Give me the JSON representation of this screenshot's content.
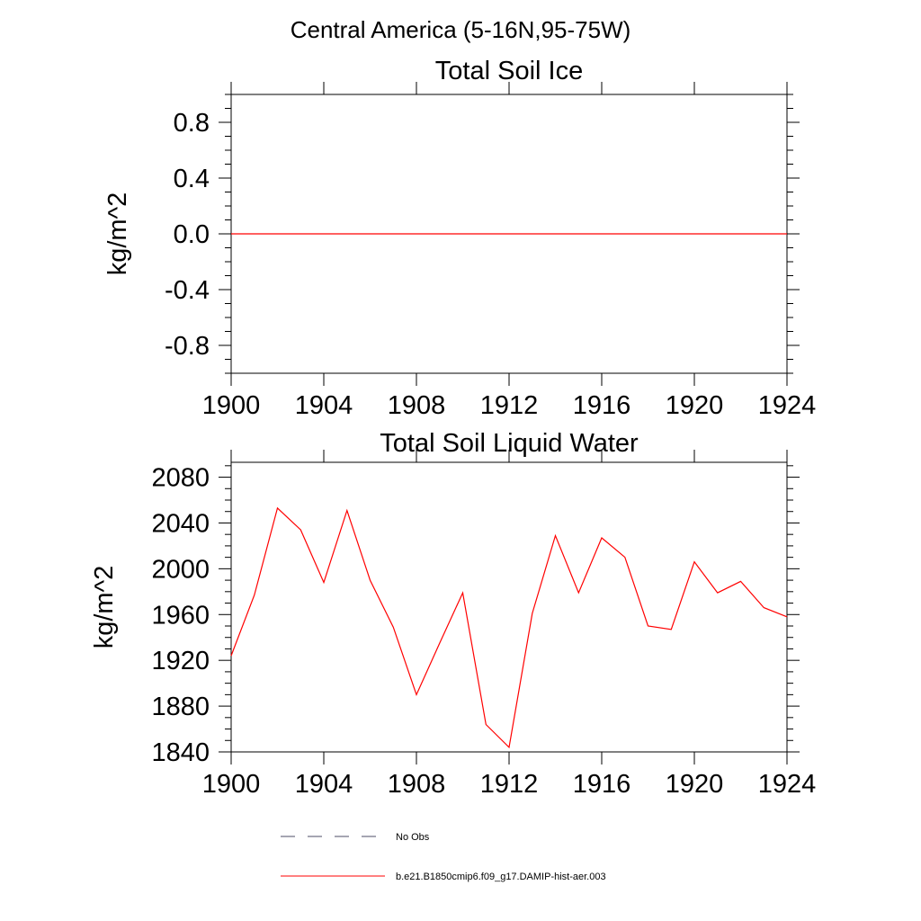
{
  "figure": {
    "suptitle": "Central America (5-16N,95-75W)"
  },
  "chart_data": [
    {
      "type": "line",
      "title": "Total Soil Ice",
      "xlabel": "",
      "ylabel": "kg/m^2",
      "xlim": [
        1900,
        1924
      ],
      "ylim": [
        -1,
        1
      ],
      "yticks": [
        -0.8,
        -0.4,
        0.0,
        0.4,
        0.8
      ],
      "ytick_labels": [
        "-0.8",
        "-0.4",
        "0.0",
        "0.4",
        "0.8"
      ],
      "xticks": [
        1900,
        1904,
        1908,
        1912,
        1916,
        1920,
        1924
      ],
      "xtick_labels": [
        "1900",
        "1904",
        "1908",
        "1912",
        "1916",
        "1920",
        "1924"
      ],
      "grid": false,
      "series": [
        {
          "name": "b.e21.B1850cmip6.f09_g17.DAMIP-hist-aer.003",
          "color": "#ff0000",
          "x": [
            1900,
            1901,
            1902,
            1903,
            1904,
            1905,
            1906,
            1907,
            1908,
            1909,
            1910,
            1911,
            1912,
            1913,
            1914,
            1915,
            1916,
            1917,
            1918,
            1919,
            1920,
            1921,
            1922,
            1923,
            1924
          ],
          "values": [
            0,
            0,
            0,
            0,
            0,
            0,
            0,
            0,
            0,
            0,
            0,
            0,
            0,
            0,
            0,
            0,
            0,
            0,
            0,
            0,
            0,
            0,
            0,
            0,
            0
          ]
        }
      ]
    },
    {
      "type": "line",
      "title": "Total Soil Liquid Water",
      "xlabel": "",
      "ylabel": "kg/m^2",
      "xlim": [
        1900,
        1924
      ],
      "ylim": [
        1840,
        2093
      ],
      "yticks": [
        1840,
        1880,
        1920,
        1960,
        2000,
        2040,
        2080
      ],
      "ytick_labels": [
        "1840",
        "1880",
        "1920",
        "1960",
        "2000",
        "2040",
        "2080"
      ],
      "xticks": [
        1900,
        1904,
        1908,
        1912,
        1916,
        1920,
        1924
      ],
      "xtick_labels": [
        "1900",
        "1904",
        "1908",
        "1912",
        "1916",
        "1920",
        "1924"
      ],
      "grid": false,
      "series": [
        {
          "name": "b.e21.B1850cmip6.f09_g17.DAMIP-hist-aer.003",
          "color": "#ff0000",
          "x": [
            1900,
            1901,
            1902,
            1903,
            1904,
            1905,
            1906,
            1907,
            1908,
            1909,
            1910,
            1911,
            1912,
            1913,
            1914,
            1915,
            1916,
            1917,
            1918,
            1919,
            1920,
            1921,
            1922,
            1923,
            1924
          ],
          "values": [
            1924,
            1977,
            2053,
            2034,
            1988,
            2051,
            1990,
            1949,
            1890,
            1935,
            1979,
            1864,
            1844,
            1961,
            2029,
            1979,
            2027,
            2010,
            1950,
            1947,
            2006,
            1979,
            1989,
            1966,
            1958
          ]
        }
      ]
    }
  ],
  "legend": {
    "placement": "bottom",
    "entries": [
      {
        "label": "No Obs",
        "style": "dashed",
        "color": "#4d4d66"
      },
      {
        "label": "b.e21.B1850cmip6.f09_g17.DAMIP-hist-aer.003",
        "style": "solid",
        "color": "#ff0000"
      }
    ]
  }
}
